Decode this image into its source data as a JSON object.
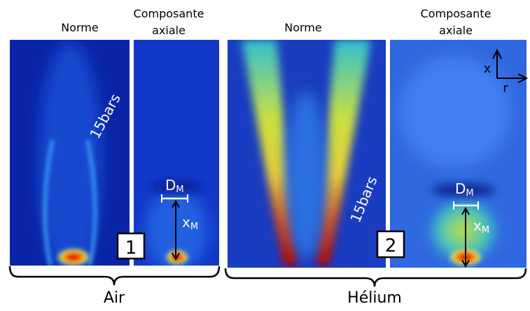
{
  "panels": [
    {
      "title": "Norme",
      "annotation": "15bars"
    },
    {
      "title": [
        "Composante",
        "axiale"
      ],
      "dm": {
        "base": "D",
        "sub": "M"
      },
      "xm": {
        "base": "x",
        "sub": "M"
      },
      "number": "1"
    },
    {
      "title": "Norme",
      "annotation": "15bars"
    },
    {
      "title": [
        "Composante",
        "axiale"
      ],
      "dm": {
        "base": "D",
        "sub": "M"
      },
      "xm": {
        "base": "x",
        "sub": "M"
      },
      "number": "2"
    }
  ],
  "axes": {
    "x": "x",
    "r": "r"
  },
  "groups": [
    {
      "label": "Air"
    },
    {
      "label": "Hélium"
    }
  ]
}
